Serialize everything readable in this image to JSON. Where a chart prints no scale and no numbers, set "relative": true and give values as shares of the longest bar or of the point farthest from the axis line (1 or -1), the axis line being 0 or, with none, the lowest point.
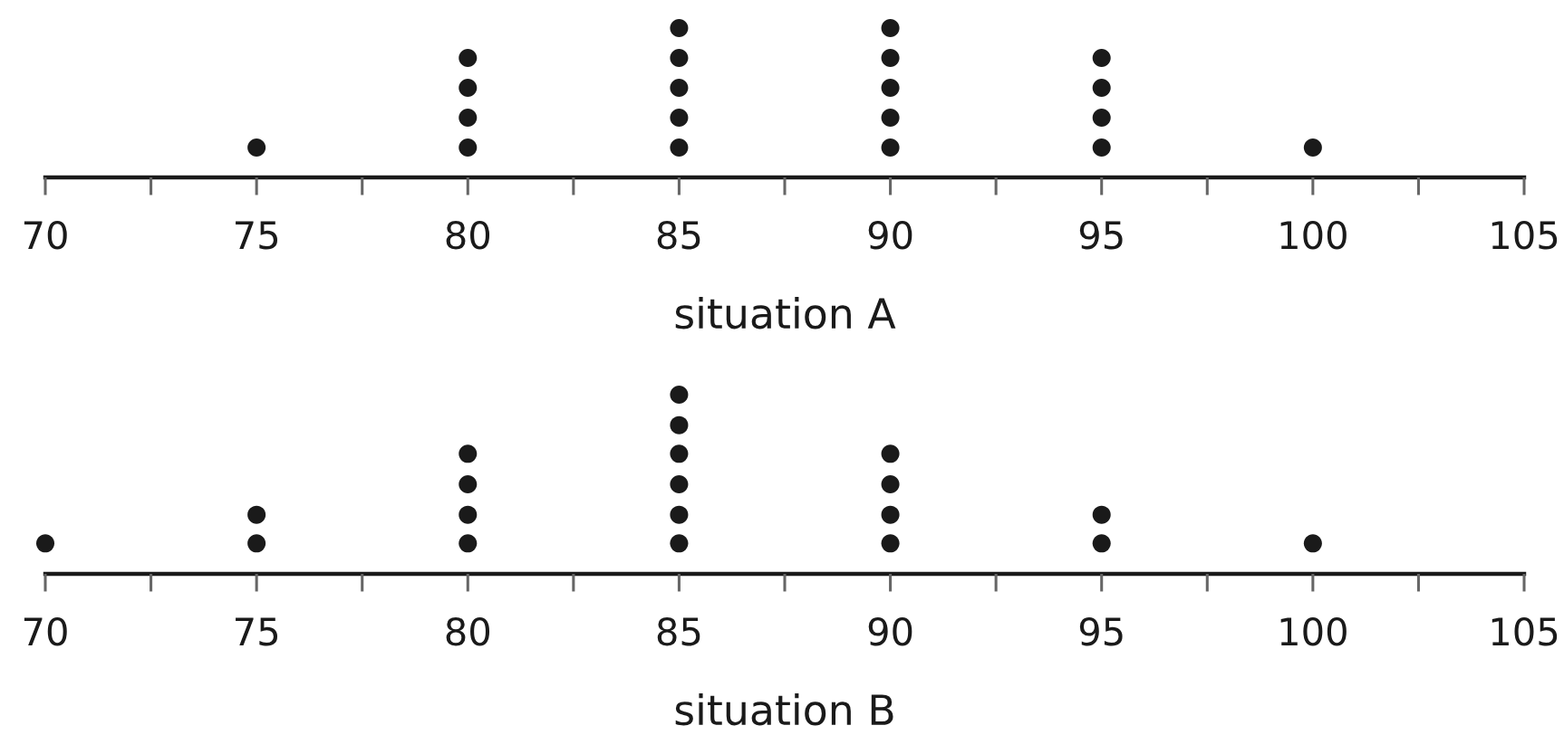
{
  "chart_data": [
    {
      "type": "scatter",
      "relative": true,
      "xlabel": "situation A",
      "x": [
        75,
        80,
        80,
        80,
        80,
        85,
        85,
        85,
        85,
        85,
        90,
        90,
        90,
        90,
        90,
        95,
        95,
        95,
        95,
        100
      ],
      "values": [
        0.2,
        0.2,
        0.4,
        0.6,
        0.8,
        0.2,
        0.4,
        0.6,
        0.8,
        1,
        0.2,
        0.4,
        0.6,
        0.8,
        1,
        0.2,
        0.4,
        0.6,
        0.8,
        0.2
      ],
      "color": "#1a1a1a",
      "marker": "circle",
      "xlim": [
        70,
        105
      ],
      "xticks": [
        70,
        {
          "value": 72.5,
          "label": null
        },
        75,
        {
          "value": 77.5,
          "label": null
        },
        80,
        {
          "value": 82.5,
          "label": null
        },
        85,
        {
          "value": 87.5,
          "label": null
        },
        90,
        {
          "value": 92.5,
          "label": null
        },
        95,
        {
          "value": 97.5,
          "label": null
        },
        100,
        {
          "value": 102.5,
          "label": null
        },
        105
      ],
      "tick_labels": "x"
    },
    {
      "type": "scatter",
      "relative": true,
      "xlabel": "situation B",
      "x": [
        70,
        75,
        75,
        80,
        80,
        80,
        80,
        85,
        85,
        85,
        85,
        85,
        85,
        90,
        90,
        90,
        90,
        95,
        95,
        100
      ],
      "values": [
        0.17,
        0.17,
        0.33,
        0.17,
        0.33,
        0.5,
        0.67,
        0.17,
        0.33,
        0.5,
        0.67,
        0.83,
        1,
        0.17,
        0.33,
        0.5,
        0.67,
        0.17,
        0.33,
        0.17
      ],
      "color": "#1a1a1a",
      "marker": "circle",
      "xlim": [
        70,
        105
      ],
      "xticks": [
        70,
        {
          "value": 72.5,
          "label": null
        },
        75,
        {
          "value": 77.5,
          "label": null
        },
        80,
        {
          "value": 82.5,
          "label": null
        },
        85,
        {
          "value": 87.5,
          "label": null
        },
        90,
        {
          "value": 92.5,
          "label": null
        },
        95,
        {
          "value": 97.5,
          "label": null
        },
        100,
        {
          "value": 102.5,
          "label": null
        },
        105
      ],
      "tick_labels": "x"
    }
  ]
}
